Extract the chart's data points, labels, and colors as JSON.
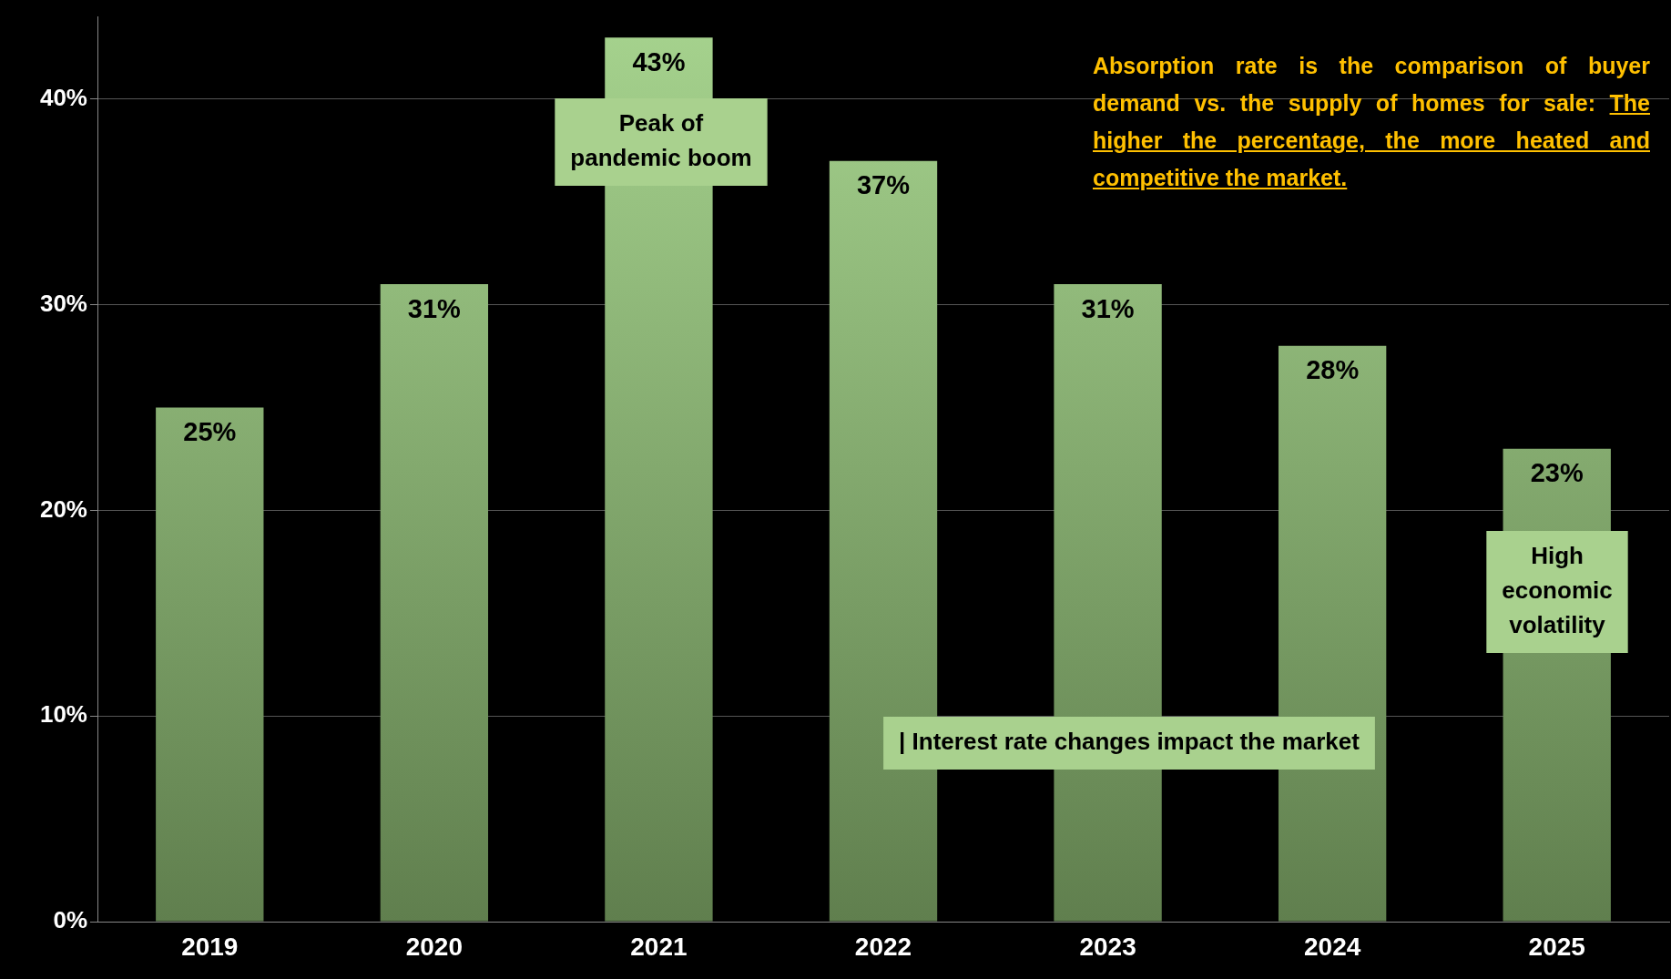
{
  "chart_data": {
    "type": "bar",
    "categories": [
      "2019",
      "2020",
      "2021",
      "2022",
      "2023",
      "2024",
      "2025"
    ],
    "values": [
      25,
      31,
      43,
      37,
      31,
      28,
      23
    ],
    "value_labels": [
      "25%",
      "31%",
      "43%",
      "37%",
      "31%",
      "28%",
      "23%"
    ],
    "color": "#a6d38e",
    "ylim": [
      0,
      44
    ],
    "yticks": [
      {
        "value": 0,
        "label": "0%"
      },
      {
        "value": 10,
        "label": "10%"
      },
      {
        "value": 20,
        "label": "20%"
      },
      {
        "value": 30,
        "label": "30%"
      },
      {
        "value": 40,
        "label": "40%"
      }
    ],
    "grid": "y",
    "legend": false,
    "annotations": [
      "Absorption rate is the comparison of buyer demand vs. the supply of homes for sale:",
      "The higher the percentage, the more heated and competitive the market.",
      "Peak of pandemic boom",
      "| Interest rate changes impact the market",
      "High economic volatility"
    ]
  }
}
